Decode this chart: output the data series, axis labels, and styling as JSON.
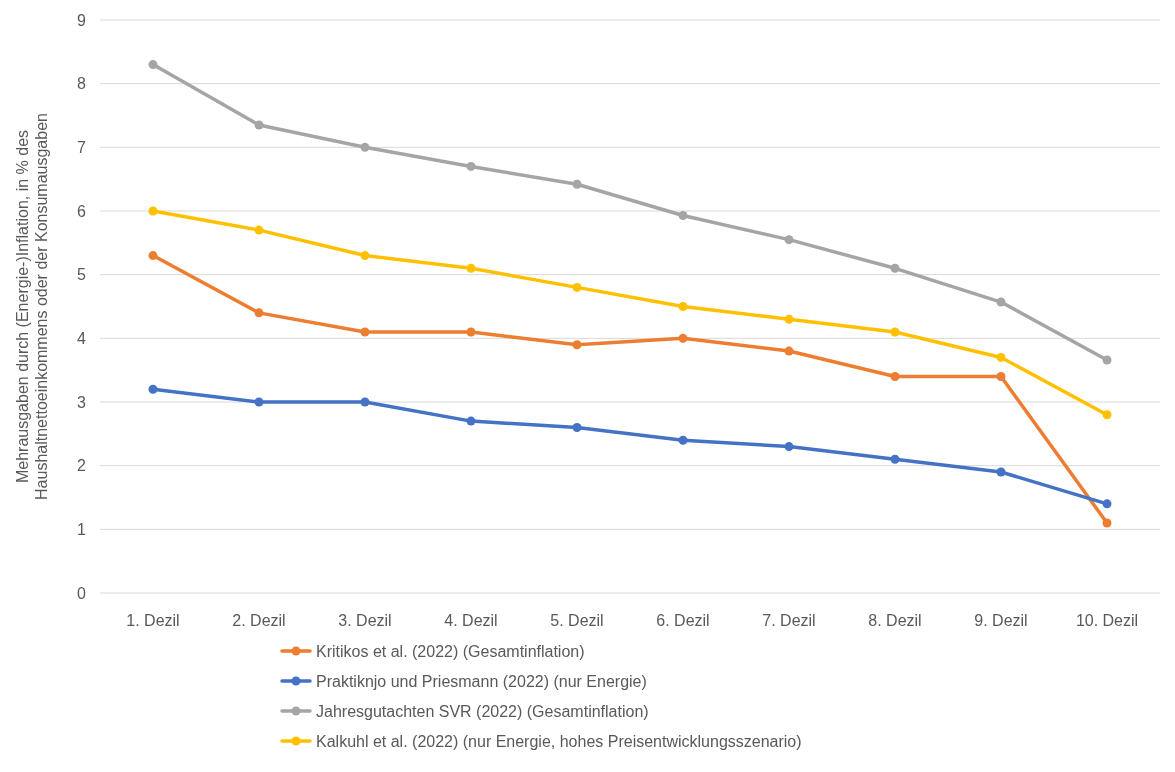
{
  "chart_data": {
    "type": "line",
    "ylabel": "Mehrausgaben durch (Energie-)Inflation, in % des Haushaltnettoeinkommens oder der Konsumausgaben",
    "categories": [
      "1. Dezil",
      "2. Dezil",
      "3. Dezil",
      "4. Dezil",
      "5. Dezil",
      "6. Dezil",
      "7. Dezil",
      "8. Dezil",
      "9. Dezil",
      "10. Dezil"
    ],
    "series": [
      {
        "name": "Kritikos et al. (2022) (Gesamtinflation)",
        "color": "#ed7d31",
        "values": [
          5.3,
          4.4,
          4.1,
          4.1,
          3.9,
          4.0,
          3.8,
          3.4,
          3.4,
          1.1
        ]
      },
      {
        "name": "Praktiknjo und Priesmann (2022) (nur Energie)",
        "color": "#4472c4",
        "values": [
          3.2,
          3.0,
          3.0,
          2.7,
          2.6,
          2.4,
          2.3,
          2.1,
          1.9,
          1.4
        ]
      },
      {
        "name": "Jahresgutachten SVR (2022) (Gesamtinflation)",
        "color": "#a5a5a5",
        "values": [
          8.3,
          7.35,
          7.0,
          6.7,
          6.42,
          5.93,
          5.55,
          5.1,
          4.57,
          3.66
        ]
      },
      {
        "name": "Kalkuhl et al. (2022) (nur Energie, hohes Preisentwicklungsszenario)",
        "color": "#ffc000",
        "values": [
          6.0,
          5.7,
          5.3,
          5.1,
          4.8,
          4.5,
          4.3,
          4.1,
          3.7,
          2.8
        ]
      }
    ],
    "ylim": [
      0,
      9
    ],
    "yticks": [
      0,
      1,
      2,
      3,
      4,
      5,
      6,
      7,
      8,
      9
    ],
    "grid": "y",
    "legend": "bottom",
    "marker": "circle",
    "line_style": "solid"
  }
}
